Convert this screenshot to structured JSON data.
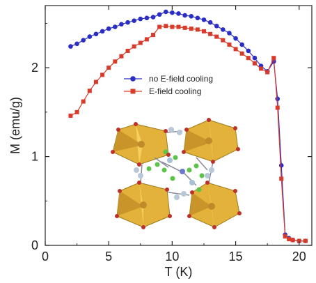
{
  "chart_data": {
    "type": "scatter",
    "xlabel": "T (K)",
    "ylabel": "M (emu/g)",
    "xlim": [
      0,
      21
    ],
    "ylim": [
      0,
      2.7
    ],
    "xticks": [
      0,
      5,
      10,
      15,
      20
    ],
    "yticks": [
      0,
      1,
      2
    ],
    "grid": false,
    "legend_position": "center",
    "series": [
      {
        "name": "no E-field cooling",
        "color": "#2b2ec4",
        "marker": "circle",
        "x": [
          2.0,
          2.5,
          3.0,
          3.5,
          4.0,
          4.5,
          5.0,
          5.5,
          6.0,
          6.5,
          7.0,
          7.5,
          8.0,
          8.5,
          9.0,
          9.5,
          10.0,
          10.5,
          11.0,
          11.5,
          12.0,
          12.5,
          13.0,
          13.5,
          14.0,
          14.5,
          15.0,
          15.5,
          16.0,
          16.5,
          17.0,
          17.5,
          18.0,
          18.3,
          18.6,
          18.9,
          19.2,
          19.5,
          20.0,
          20.5
        ],
        "y": [
          2.24,
          2.27,
          2.31,
          2.35,
          2.38,
          2.41,
          2.44,
          2.46,
          2.49,
          2.51,
          2.53,
          2.55,
          2.56,
          2.57,
          2.6,
          2.63,
          2.62,
          2.61,
          2.59,
          2.58,
          2.56,
          2.54,
          2.51,
          2.47,
          2.43,
          2.39,
          2.33,
          2.26,
          2.19,
          2.11,
          2.02,
          1.96,
          2.07,
          1.65,
          0.9,
          0.12,
          0.08,
          0.06,
          0.05,
          0.05
        ]
      },
      {
        "name": "E-field cooling",
        "color": "#d93b2b",
        "marker": "square",
        "x": [
          2.0,
          2.5,
          3.0,
          3.5,
          4.0,
          4.5,
          5.0,
          5.5,
          6.0,
          6.5,
          7.0,
          7.5,
          8.0,
          8.5,
          9.0,
          9.5,
          10.0,
          10.5,
          11.0,
          11.5,
          12.0,
          12.5,
          13.0,
          13.5,
          14.0,
          14.5,
          15.0,
          15.5,
          16.0,
          16.5,
          17.0,
          17.5,
          18.0,
          18.3,
          18.6,
          18.9,
          19.2,
          19.5,
          20.0,
          20.5
        ],
        "y": [
          1.46,
          1.5,
          1.62,
          1.74,
          1.84,
          1.92,
          2.0,
          2.07,
          2.13,
          2.19,
          2.24,
          2.28,
          2.32,
          2.37,
          2.46,
          2.47,
          2.46,
          2.46,
          2.45,
          2.44,
          2.43,
          2.41,
          2.38,
          2.35,
          2.31,
          2.26,
          2.21,
          2.16,
          2.11,
          2.05,
          1.99,
          1.95,
          2.11,
          1.55,
          0.75,
          0.1,
          0.07,
          0.06,
          0.05,
          0.05
        ]
      }
    ]
  }
}
